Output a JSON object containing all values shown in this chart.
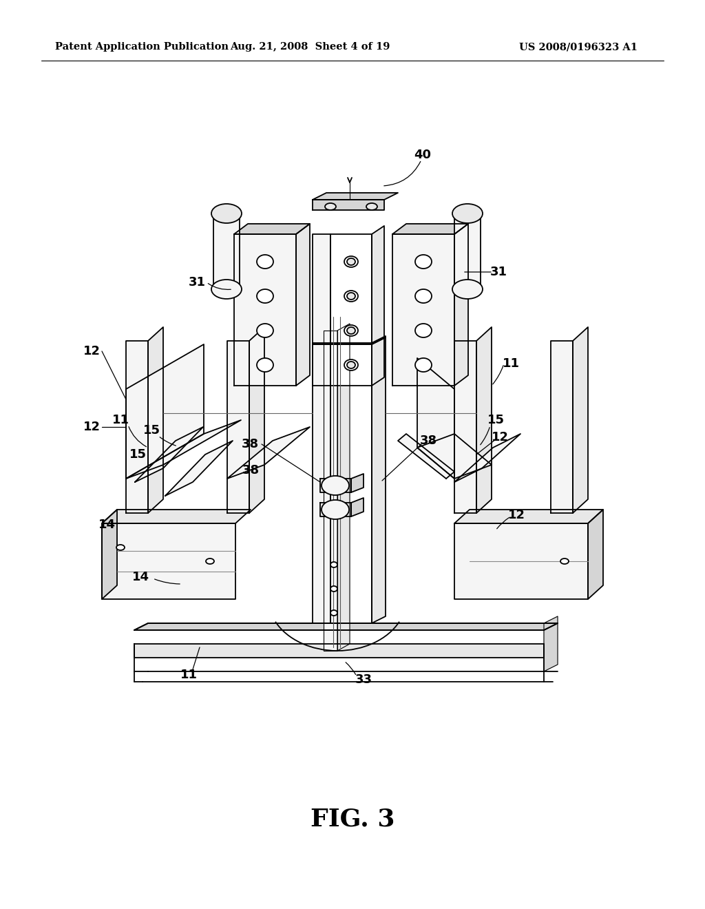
{
  "background_color": "#ffffff",
  "header_left": "Patent Application Publication",
  "header_center": "Aug. 21, 2008  Sheet 4 of 19",
  "header_right": "US 2008/0196323 A1",
  "figure_caption": "FIG. 3",
  "line_color": "#000000",
  "text_color": "#000000",
  "fill_light": "#f5f5f5",
  "fill_mid": "#e8e8e8",
  "fill_dark": "#d5d5d5",
  "lw_main": 1.3,
  "lw_thin": 0.8,
  "lw_thick": 1.8,
  "label_fontsize": 13,
  "header_fontsize": 10.5,
  "caption_fontsize": 26
}
